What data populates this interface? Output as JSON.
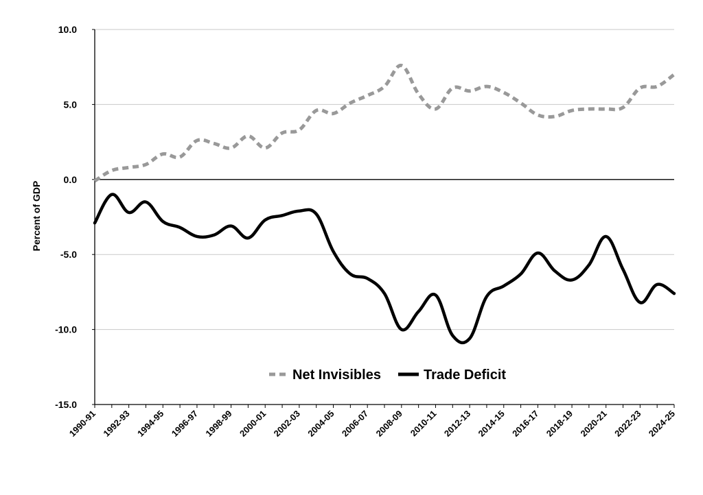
{
  "chart_data": {
    "type": "line",
    "title": "",
    "xlabel": "",
    "ylabel": "Percent of GDP",
    "ylim": [
      -15,
      10
    ],
    "yticks": [
      10,
      5,
      0,
      -5,
      -10,
      -15
    ],
    "ytick_labels": [
      "10.0",
      "5.0",
      "0.0",
      "-5.0",
      "-10.0",
      "-15.0"
    ],
    "grid": "horizontal",
    "legend_position": "bottom-center",
    "x": [
      "1990-91",
      "1991-92",
      "1992-93",
      "1993-94",
      "1994-95",
      "1995-96",
      "1996-97",
      "1997-98",
      "1998-99",
      "1999-00",
      "2000-01",
      "2001-02",
      "2002-03",
      "2003-04",
      "2004-05",
      "2005-06",
      "2006-07",
      "2007-08",
      "2008-09",
      "2009-10",
      "2010-11",
      "2011-12",
      "2012-13",
      "2013-14",
      "2014-15",
      "2015-16",
      "2016-17",
      "2017-18",
      "2018-19",
      "2019-20",
      "2020-21",
      "2021-22",
      "2022-23",
      "2023-24",
      "2024-25"
    ],
    "x_tick_labels": [
      "1990-91",
      "1992-93",
      "1994-95",
      "1996-97",
      "1998-99",
      "2000-01",
      "2002-03",
      "2004-05",
      "2006-07",
      "2008-09",
      "2010-11",
      "2012-13",
      "2014-15",
      "2016-17",
      "2018-19",
      "2020-21",
      "2022-23",
      "2024-25"
    ],
    "series": [
      {
        "name": "Net Invisibles",
        "color": "#999999",
        "style": "dashed",
        "values": [
          -0.1,
          0.6,
          0.8,
          1.0,
          1.7,
          1.5,
          2.6,
          2.4,
          2.1,
          2.9,
          2.1,
          3.1,
          3.3,
          4.6,
          4.4,
          5.1,
          5.6,
          6.2,
          7.6,
          5.7,
          4.7,
          6.1,
          5.9,
          6.2,
          5.8,
          5.1,
          4.3,
          4.2,
          4.6,
          4.7,
          4.7,
          4.8,
          6.1,
          6.2,
          7.0
        ]
      },
      {
        "name": "Trade Deficit",
        "color": "#000000",
        "style": "solid",
        "values": [
          -2.9,
          -1.0,
          -2.2,
          -1.5,
          -2.8,
          -3.2,
          -3.8,
          -3.7,
          -3.1,
          -3.9,
          -2.7,
          -2.4,
          -2.1,
          -2.3,
          -4.8,
          -6.3,
          -6.6,
          -7.6,
          -10.0,
          -8.8,
          -7.7,
          -10.4,
          -10.6,
          -7.8,
          -7.1,
          -6.3,
          -4.9,
          -6.1,
          -6.7,
          -5.7,
          -3.8,
          -6.0,
          -8.2,
          -7.0,
          -7.6
        ]
      }
    ]
  }
}
